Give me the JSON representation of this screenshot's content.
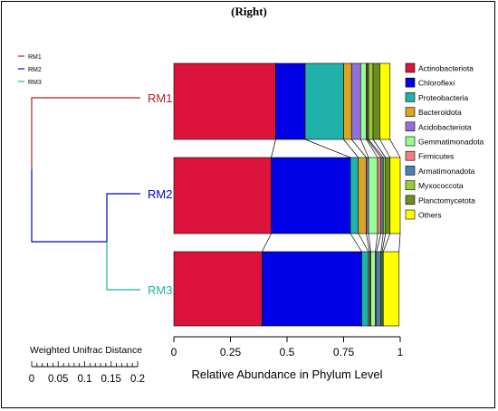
{
  "title": "(Right)",
  "chart_data": {
    "type": "bar",
    "orientation": "horizontal",
    "stacked": true,
    "categories": [
      "RM1",
      "RM2",
      "RM3"
    ],
    "xlabel": "Relative Abundance in Phylum Level",
    "xlim": [
      0,
      1
    ],
    "xticks": [
      "0",
      "0.25",
      "0.5",
      "0.75",
      "1"
    ],
    "series": [
      {
        "name": "Actinobacteriota",
        "color": "#DC143C",
        "values": [
          0.45,
          0.43,
          0.39
        ]
      },
      {
        "name": "Chloroflexi",
        "color": "#0000E6",
        "values": [
          0.13,
          0.35,
          0.44
        ]
      },
      {
        "name": "Proteobacteria",
        "color": "#20B2AA",
        "values": [
          0.17,
          0.035,
          0.03
        ]
      },
      {
        "name": "Bacteroidota",
        "color": "#DAA520",
        "values": [
          0.035,
          0.035,
          0.005
        ]
      },
      {
        "name": "Acidobacteriota",
        "color": "#9370DB",
        "values": [
          0.04,
          0.01,
          0.005
        ]
      },
      {
        "name": "Gemmatimonadota",
        "color": "#98FB98",
        "values": [
          0.025,
          0.04,
          0.02
        ]
      },
      {
        "name": "Firmicutes",
        "color": "#F08080",
        "values": [
          0.005,
          0.015,
          0.005
        ]
      },
      {
        "name": "Armatimonadota",
        "color": "#4682B4",
        "values": [
          0.005,
          0.01,
          0.02
        ]
      },
      {
        "name": "Myxococcota",
        "color": "#9ACD32",
        "values": [
          0.02,
          0.01,
          0.005
        ]
      },
      {
        "name": "Planctomycetota",
        "color": "#6B8E23",
        "values": [
          0.03,
          0.02,
          0.005
        ]
      },
      {
        "name": "Others",
        "color": "#FFFF00",
        "values": [
          0.045,
          0.045,
          0.07
        ]
      }
    ],
    "legend_position": "right",
    "dendrogram": {
      "labels": [
        {
          "name": "RM1",
          "color": "#B22222"
        },
        {
          "name": "RM2",
          "color": "#0000CD"
        },
        {
          "name": "RM3",
          "color": "#20B2AA"
        }
      ],
      "key": [
        "RM1",
        "RM2",
        "RM3"
      ],
      "scale_label": "Weighted Unifrac Distance",
      "scale_ticks": [
        "0",
        "0.05",
        "0.1",
        "0.15",
        "0.2"
      ],
      "scale_range": [
        0,
        0.2
      ]
    }
  }
}
